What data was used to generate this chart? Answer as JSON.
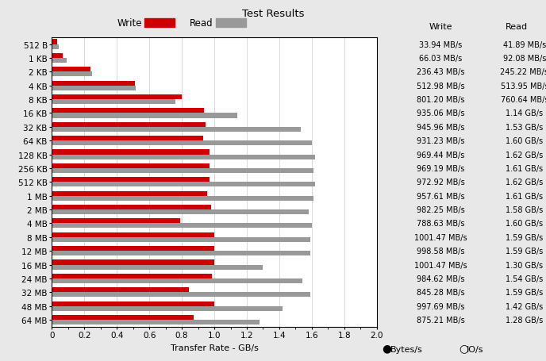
{
  "title": "Test Results",
  "xlabel": "Transfer Rate - GB/s",
  "categories": [
    "512 B",
    "1 KB",
    "2 KB",
    "4 KB",
    "8 KB",
    "16 KB",
    "32 KB",
    "64 KB",
    "128 KB",
    "256 KB",
    "512 KB",
    "1 MB",
    "2 MB",
    "4 MB",
    "8 MB",
    "12 MB",
    "16 MB",
    "24 MB",
    "32 MB",
    "48 MB",
    "64 MB"
  ],
  "write_gb": [
    0.03394,
    0.06603,
    0.23643,
    0.51298,
    0.8012,
    0.93506,
    0.94596,
    0.93123,
    0.96944,
    0.96919,
    0.97292,
    0.95761,
    0.98225,
    0.78863,
    1.00147,
    0.99858,
    1.00147,
    0.98462,
    0.84528,
    0.99769,
    0.87521
  ],
  "read_gb": [
    0.04189,
    0.09208,
    0.24522,
    0.51395,
    0.76064,
    1.14,
    1.53,
    1.6,
    1.62,
    1.61,
    1.62,
    1.61,
    1.58,
    1.6,
    1.59,
    1.59,
    1.3,
    1.54,
    1.59,
    1.42,
    1.28
  ],
  "write_labels": [
    "33.94 MB/s",
    "66.03 MB/s",
    "236.43 MB/s",
    "512.98 MB/s",
    "801.20 MB/s",
    "935.06 MB/s",
    "945.96 MB/s",
    "931.23 MB/s",
    "969.44 MB/s",
    "969.19 MB/s",
    "972.92 MB/s",
    "957.61 MB/s",
    "982.25 MB/s",
    "788.63 MB/s",
    "1001.47 MB/s",
    "998.58 MB/s",
    "1001.47 MB/s",
    "984.62 MB/s",
    "845.28 MB/s",
    "997.69 MB/s",
    "875.21 MB/s"
  ],
  "read_labels": [
    "41.89 MB/s",
    "92.08 MB/s",
    "245.22 MB/s",
    "513.95 MB/s",
    "760.64 MB/s",
    "1.14 GB/s",
    "1.53 GB/s",
    "1.60 GB/s",
    "1.62 GB/s",
    "1.61 GB/s",
    "1.62 GB/s",
    "1.61 GB/s",
    "1.58 GB/s",
    "1.60 GB/s",
    "1.59 GB/s",
    "1.59 GB/s",
    "1.30 GB/s",
    "1.54 GB/s",
    "1.59 GB/s",
    "1.42 GB/s",
    "1.28 GB/s"
  ],
  "write_color": "#cc0000",
  "read_color": "#999999",
  "bg_color": "#e8e8e8",
  "plot_bg": "#ffffff",
  "xlim": [
    0,
    2.0
  ],
  "xticks": [
    0,
    0.2,
    0.4,
    0.6,
    0.8,
    1.0,
    1.2,
    1.4,
    1.6,
    1.8,
    2.0
  ],
  "legend_write": "Write",
  "legend_read": "Read",
  "bytes_label": "Bytes/s",
  "io_label": "IO/s"
}
